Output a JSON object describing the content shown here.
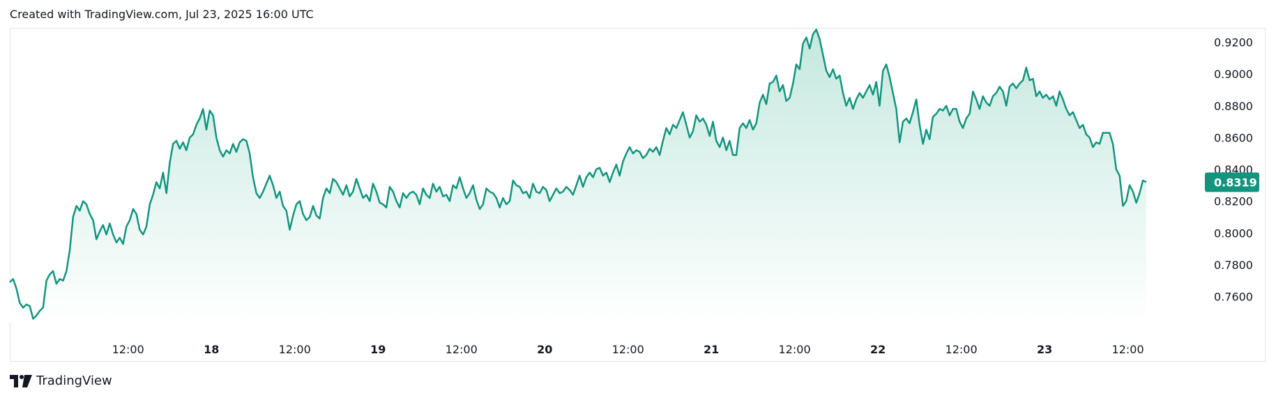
{
  "header": {
    "text": "Created with TradingView.com, Jul 23, 2025 16:00 UTC"
  },
  "brand": {
    "name": "TradingView"
  },
  "colors": {
    "line": "#12947e",
    "fill_top": "#c4e8de",
    "fill_bottom": "#ffffff",
    "border": "#e0e3eb",
    "text": "#131722"
  },
  "chart_data": {
    "type": "area",
    "x_ticks": [
      {
        "label": "12:00",
        "day": 0.5,
        "bold": false
      },
      {
        "label": "18",
        "day": 1.0,
        "bold": true
      },
      {
        "label": "12:00",
        "day": 1.5,
        "bold": false
      },
      {
        "label": "19",
        "day": 2.0,
        "bold": true
      },
      {
        "label": "12:00",
        "day": 2.5,
        "bold": false
      },
      {
        "label": "20",
        "day": 3.0,
        "bold": true
      },
      {
        "label": "12:00",
        "day": 3.5,
        "bold": false
      },
      {
        "label": "21",
        "day": 4.0,
        "bold": true
      },
      {
        "label": "12:00",
        "day": 4.5,
        "bold": false
      },
      {
        "label": "22",
        "day": 5.0,
        "bold": true
      },
      {
        "label": "12:00",
        "day": 5.5,
        "bold": false
      },
      {
        "label": "23",
        "day": 6.0,
        "bold": true
      },
      {
        "label": "12:00",
        "day": 6.5,
        "bold": false
      }
    ],
    "y_ticks": [
      "0.9200",
      "0.9000",
      "0.8800",
      "0.8600",
      "0.8400",
      "0.8200",
      "0.8000",
      "0.7800",
      "0.7600"
    ],
    "ylim": [
      0.744,
      0.929
    ],
    "xlim": [
      -0.21,
      6.92
    ],
    "last_value": "0.8319",
    "points": [
      [
        -0.21,
        0.769
      ],
      [
        -0.19,
        0.771
      ],
      [
        -0.17,
        0.765
      ],
      [
        -0.15,
        0.756
      ],
      [
        -0.13,
        0.753
      ],
      [
        -0.11,
        0.755
      ],
      [
        -0.09,
        0.754
      ],
      [
        -0.07,
        0.746
      ],
      [
        -0.05,
        0.748
      ],
      [
        -0.03,
        0.751
      ],
      [
        -0.01,
        0.753
      ],
      [
        0.01,
        0.77
      ],
      [
        0.03,
        0.774
      ],
      [
        0.05,
        0.776
      ],
      [
        0.07,
        0.768
      ],
      [
        0.09,
        0.771
      ],
      [
        0.11,
        0.77
      ],
      [
        0.13,
        0.776
      ],
      [
        0.15,
        0.789
      ],
      [
        0.17,
        0.81
      ],
      [
        0.19,
        0.817
      ],
      [
        0.21,
        0.814
      ],
      [
        0.23,
        0.82
      ],
      [
        0.25,
        0.818
      ],
      [
        0.27,
        0.812
      ],
      [
        0.29,
        0.808
      ],
      [
        0.31,
        0.796
      ],
      [
        0.33,
        0.801
      ],
      [
        0.35,
        0.805
      ],
      [
        0.37,
        0.799
      ],
      [
        0.39,
        0.806
      ],
      [
        0.41,
        0.799
      ],
      [
        0.43,
        0.794
      ],
      [
        0.45,
        0.797
      ],
      [
        0.47,
        0.793
      ],
      [
        0.49,
        0.804
      ],
      [
        0.51,
        0.808
      ],
      [
        0.53,
        0.815
      ],
      [
        0.55,
        0.812
      ],
      [
        0.57,
        0.802
      ],
      [
        0.59,
        0.799
      ],
      [
        0.61,
        0.804
      ],
      [
        0.63,
        0.818
      ],
      [
        0.65,
        0.824
      ],
      [
        0.67,
        0.832
      ],
      [
        0.69,
        0.828
      ],
      [
        0.71,
        0.838
      ],
      [
        0.73,
        0.825
      ],
      [
        0.75,
        0.844
      ],
      [
        0.77,
        0.856
      ],
      [
        0.79,
        0.858
      ],
      [
        0.81,
        0.853
      ],
      [
        0.83,
        0.857
      ],
      [
        0.85,
        0.852
      ],
      [
        0.87,
        0.86
      ],
      [
        0.89,
        0.862
      ],
      [
        0.91,
        0.868
      ],
      [
        0.93,
        0.872
      ],
      [
        0.95,
        0.878
      ],
      [
        0.97,
        0.865
      ],
      [
        0.99,
        0.877
      ],
      [
        1.01,
        0.874
      ],
      [
        1.03,
        0.86
      ],
      [
        1.05,
        0.852
      ],
      [
        1.07,
        0.848
      ],
      [
        1.09,
        0.852
      ],
      [
        1.11,
        0.85
      ],
      [
        1.13,
        0.856
      ],
      [
        1.15,
        0.851
      ],
      [
        1.17,
        0.857
      ],
      [
        1.19,
        0.859
      ],
      [
        1.21,
        0.858
      ],
      [
        1.23,
        0.85
      ],
      [
        1.25,
        0.835
      ],
      [
        1.27,
        0.825
      ],
      [
        1.29,
        0.822
      ],
      [
        1.31,
        0.826
      ],
      [
        1.33,
        0.831
      ],
      [
        1.35,
        0.836
      ],
      [
        1.37,
        0.83
      ],
      [
        1.39,
        0.822
      ],
      [
        1.41,
        0.826
      ],
      [
        1.43,
        0.817
      ],
      [
        1.45,
        0.814
      ],
      [
        1.47,
        0.802
      ],
      [
        1.49,
        0.811
      ],
      [
        1.51,
        0.818
      ],
      [
        1.53,
        0.82
      ],
      [
        1.55,
        0.812
      ],
      [
        1.57,
        0.808
      ],
      [
        1.59,
        0.81
      ],
      [
        1.61,
        0.817
      ],
      [
        1.63,
        0.811
      ],
      [
        1.65,
        0.809
      ],
      [
        1.67,
        0.822
      ],
      [
        1.69,
        0.828
      ],
      [
        1.71,
        0.825
      ],
      [
        1.73,
        0.834
      ],
      [
        1.75,
        0.832
      ],
      [
        1.77,
        0.828
      ],
      [
        1.79,
        0.824
      ],
      [
        1.81,
        0.83
      ],
      [
        1.83,
        0.823
      ],
      [
        1.85,
        0.826
      ],
      [
        1.87,
        0.834
      ],
      [
        1.89,
        0.828
      ],
      [
        1.91,
        0.822
      ],
      [
        1.93,
        0.824
      ],
      [
        1.95,
        0.82
      ],
      [
        1.97,
        0.831
      ],
      [
        1.99,
        0.826
      ],
      [
        2.01,
        0.819
      ],
      [
        2.03,
        0.818
      ],
      [
        2.05,
        0.816
      ],
      [
        2.07,
        0.829
      ],
      [
        2.09,
        0.826
      ],
      [
        2.11,
        0.82
      ],
      [
        2.13,
        0.816
      ],
      [
        2.15,
        0.825
      ],
      [
        2.17,
        0.822
      ],
      [
        2.19,
        0.825
      ],
      [
        2.21,
        0.826
      ],
      [
        2.23,
        0.824
      ],
      [
        2.25,
        0.818
      ],
      [
        2.27,
        0.828
      ],
      [
        2.29,
        0.824
      ],
      [
        2.31,
        0.822
      ],
      [
        2.33,
        0.831
      ],
      [
        2.35,
        0.826
      ],
      [
        2.37,
        0.829
      ],
      [
        2.39,
        0.823
      ],
      [
        2.41,
        0.824
      ],
      [
        2.43,
        0.82
      ],
      [
        2.45,
        0.83
      ],
      [
        2.47,
        0.828
      ],
      [
        2.49,
        0.835
      ],
      [
        2.51,
        0.828
      ],
      [
        2.53,
        0.822
      ],
      [
        2.55,
        0.825
      ],
      [
        2.57,
        0.83
      ],
      [
        2.59,
        0.821
      ],
      [
        2.61,
        0.815
      ],
      [
        2.63,
        0.818
      ],
      [
        2.65,
        0.828
      ],
      [
        2.67,
        0.826
      ],
      [
        2.69,
        0.825
      ],
      [
        2.71,
        0.822
      ],
      [
        2.73,
        0.816
      ],
      [
        2.75,
        0.822
      ],
      [
        2.77,
        0.818
      ],
      [
        2.79,
        0.82
      ],
      [
        2.81,
        0.833
      ],
      [
        2.83,
        0.83
      ],
      [
        2.85,
        0.829
      ],
      [
        2.87,
        0.825
      ],
      [
        2.89,
        0.826
      ],
      [
        2.91,
        0.822
      ],
      [
        2.93,
        0.831
      ],
      [
        2.95,
        0.826
      ],
      [
        2.97,
        0.825
      ],
      [
        2.99,
        0.829
      ],
      [
        3.01,
        0.827
      ],
      [
        3.03,
        0.82
      ],
      [
        3.05,
        0.824
      ],
      [
        3.07,
        0.828
      ],
      [
        3.09,
        0.825
      ],
      [
        3.11,
        0.826
      ],
      [
        3.13,
        0.829
      ],
      [
        3.15,
        0.827
      ],
      [
        3.17,
        0.824
      ],
      [
        3.19,
        0.83
      ],
      [
        3.21,
        0.836
      ],
      [
        3.23,
        0.829
      ],
      [
        3.25,
        0.835
      ],
      [
        3.27,
        0.838
      ],
      [
        3.29,
        0.835
      ],
      [
        3.31,
        0.84
      ],
      [
        3.33,
        0.841
      ],
      [
        3.35,
        0.836
      ],
      [
        3.37,
        0.838
      ],
      [
        3.39,
        0.832
      ],
      [
        3.41,
        0.838
      ],
      [
        3.43,
        0.843
      ],
      [
        3.45,
        0.836
      ],
      [
        3.47,
        0.845
      ],
      [
        3.49,
        0.85
      ],
      [
        3.51,
        0.854
      ],
      [
        3.53,
        0.85
      ],
      [
        3.55,
        0.852
      ],
      [
        3.57,
        0.851
      ],
      [
        3.59,
        0.847
      ],
      [
        3.61,
        0.849
      ],
      [
        3.63,
        0.853
      ],
      [
        3.65,
        0.851
      ],
      [
        3.67,
        0.854
      ],
      [
        3.69,
        0.849
      ],
      [
        3.71,
        0.858
      ],
      [
        3.73,
        0.866
      ],
      [
        3.75,
        0.862
      ],
      [
        3.77,
        0.868
      ],
      [
        3.79,
        0.866
      ],
      [
        3.81,
        0.871
      ],
      [
        3.83,
        0.876
      ],
      [
        3.85,
        0.868
      ],
      [
        3.87,
        0.86
      ],
      [
        3.89,
        0.864
      ],
      [
        3.91,
        0.874
      ],
      [
        3.93,
        0.87
      ],
      [
        3.95,
        0.872
      ],
      [
        3.97,
        0.868
      ],
      [
        3.99,
        0.861
      ],
      [
        4.01,
        0.87
      ],
      [
        4.03,
        0.858
      ],
      [
        4.05,
        0.854
      ],
      [
        4.07,
        0.86
      ],
      [
        4.09,
        0.852
      ],
      [
        4.11,
        0.858
      ],
      [
        4.13,
        0.849
      ],
      [
        4.15,
        0.849
      ],
      [
        4.17,
        0.866
      ],
      [
        4.19,
        0.869
      ],
      [
        4.21,
        0.866
      ],
      [
        4.23,
        0.871
      ],
      [
        4.25,
        0.865
      ],
      [
        4.27,
        0.869
      ],
      [
        4.29,
        0.882
      ],
      [
        4.31,
        0.887
      ],
      [
        4.33,
        0.881
      ],
      [
        4.35,
        0.894
      ],
      [
        4.37,
        0.895
      ],
      [
        4.39,
        0.899
      ],
      [
        4.41,
        0.889
      ],
      [
        4.43,
        0.893
      ],
      [
        4.45,
        0.883
      ],
      [
        4.47,
        0.885
      ],
      [
        4.49,
        0.894
      ],
      [
        4.51,
        0.906
      ],
      [
        4.53,
        0.903
      ],
      [
        4.55,
        0.919
      ],
      [
        4.57,
        0.923
      ],
      [
        4.59,
        0.916
      ],
      [
        4.61,
        0.925
      ],
      [
        4.63,
        0.928
      ],
      [
        4.65,
        0.922
      ],
      [
        4.67,
        0.912
      ],
      [
        4.69,
        0.902
      ],
      [
        4.71,
        0.898
      ],
      [
        4.73,
        0.903
      ],
      [
        4.75,
        0.897
      ],
      [
        4.77,
        0.899
      ],
      [
        4.79,
        0.888
      ],
      [
        4.81,
        0.88
      ],
      [
        4.83,
        0.885
      ],
      [
        4.85,
        0.878
      ],
      [
        4.87,
        0.884
      ],
      [
        4.89,
        0.888
      ],
      [
        4.91,
        0.885
      ],
      [
        4.93,
        0.889
      ],
      [
        4.95,
        0.893
      ],
      [
        4.97,
        0.887
      ],
      [
        4.99,
        0.895
      ],
      [
        5.01,
        0.88
      ],
      [
        5.03,
        0.902
      ],
      [
        5.05,
        0.906
      ],
      [
        5.07,
        0.898
      ],
      [
        5.09,
        0.888
      ],
      [
        5.11,
        0.878
      ],
      [
        5.13,
        0.857
      ],
      [
        5.15,
        0.87
      ],
      [
        5.17,
        0.872
      ],
      [
        5.19,
        0.869
      ],
      [
        5.21,
        0.876
      ],
      [
        5.23,
        0.884
      ],
      [
        5.25,
        0.868
      ],
      [
        5.27,
        0.856
      ],
      [
        5.29,
        0.865
      ],
      [
        5.31,
        0.859
      ],
      [
        5.33,
        0.873
      ],
      [
        5.35,
        0.875
      ],
      [
        5.37,
        0.878
      ],
      [
        5.39,
        0.877
      ],
      [
        5.41,
        0.88
      ],
      [
        5.43,
        0.874
      ],
      [
        5.45,
        0.878
      ],
      [
        5.47,
        0.878
      ],
      [
        5.49,
        0.87
      ],
      [
        5.51,
        0.866
      ],
      [
        5.53,
        0.872
      ],
      [
        5.55,
        0.875
      ],
      [
        5.57,
        0.889
      ],
      [
        5.59,
        0.884
      ],
      [
        5.61,
        0.878
      ],
      [
        5.63,
        0.886
      ],
      [
        5.65,
        0.882
      ],
      [
        5.67,
        0.88
      ],
      [
        5.69,
        0.886
      ],
      [
        5.71,
        0.888
      ],
      [
        5.73,
        0.892
      ],
      [
        5.75,
        0.889
      ],
      [
        5.77,
        0.88
      ],
      [
        5.79,
        0.892
      ],
      [
        5.81,
        0.894
      ],
      [
        5.83,
        0.891
      ],
      [
        5.85,
        0.894
      ],
      [
        5.87,
        0.896
      ],
      [
        5.89,
        0.904
      ],
      [
        5.91,
        0.896
      ],
      [
        5.93,
        0.897
      ],
      [
        5.95,
        0.886
      ],
      [
        5.97,
        0.889
      ],
      [
        5.99,
        0.885
      ],
      [
        6.01,
        0.887
      ],
      [
        6.03,
        0.884
      ],
      [
        6.05,
        0.886
      ],
      [
        6.07,
        0.88
      ],
      [
        6.09,
        0.889
      ],
      [
        6.11,
        0.884
      ],
      [
        6.13,
        0.878
      ],
      [
        6.15,
        0.874
      ],
      [
        6.17,
        0.876
      ],
      [
        6.19,
        0.871
      ],
      [
        6.21,
        0.866
      ],
      [
        6.23,
        0.868
      ],
      [
        6.25,
        0.862
      ],
      [
        6.27,
        0.86
      ],
      [
        6.29,
        0.854
      ],
      [
        6.31,
        0.857
      ],
      [
        6.33,
        0.856
      ],
      [
        6.35,
        0.863
      ],
      [
        6.37,
        0.863
      ],
      [
        6.39,
        0.863
      ],
      [
        6.41,
        0.856
      ],
      [
        6.43,
        0.84
      ],
      [
        6.45,
        0.836
      ],
      [
        6.47,
        0.817
      ],
      [
        6.49,
        0.82
      ],
      [
        6.51,
        0.83
      ],
      [
        6.53,
        0.826
      ],
      [
        6.55,
        0.819
      ],
      [
        6.57,
        0.825
      ],
      [
        6.59,
        0.833
      ],
      [
        6.61,
        0.832
      ]
    ]
  }
}
